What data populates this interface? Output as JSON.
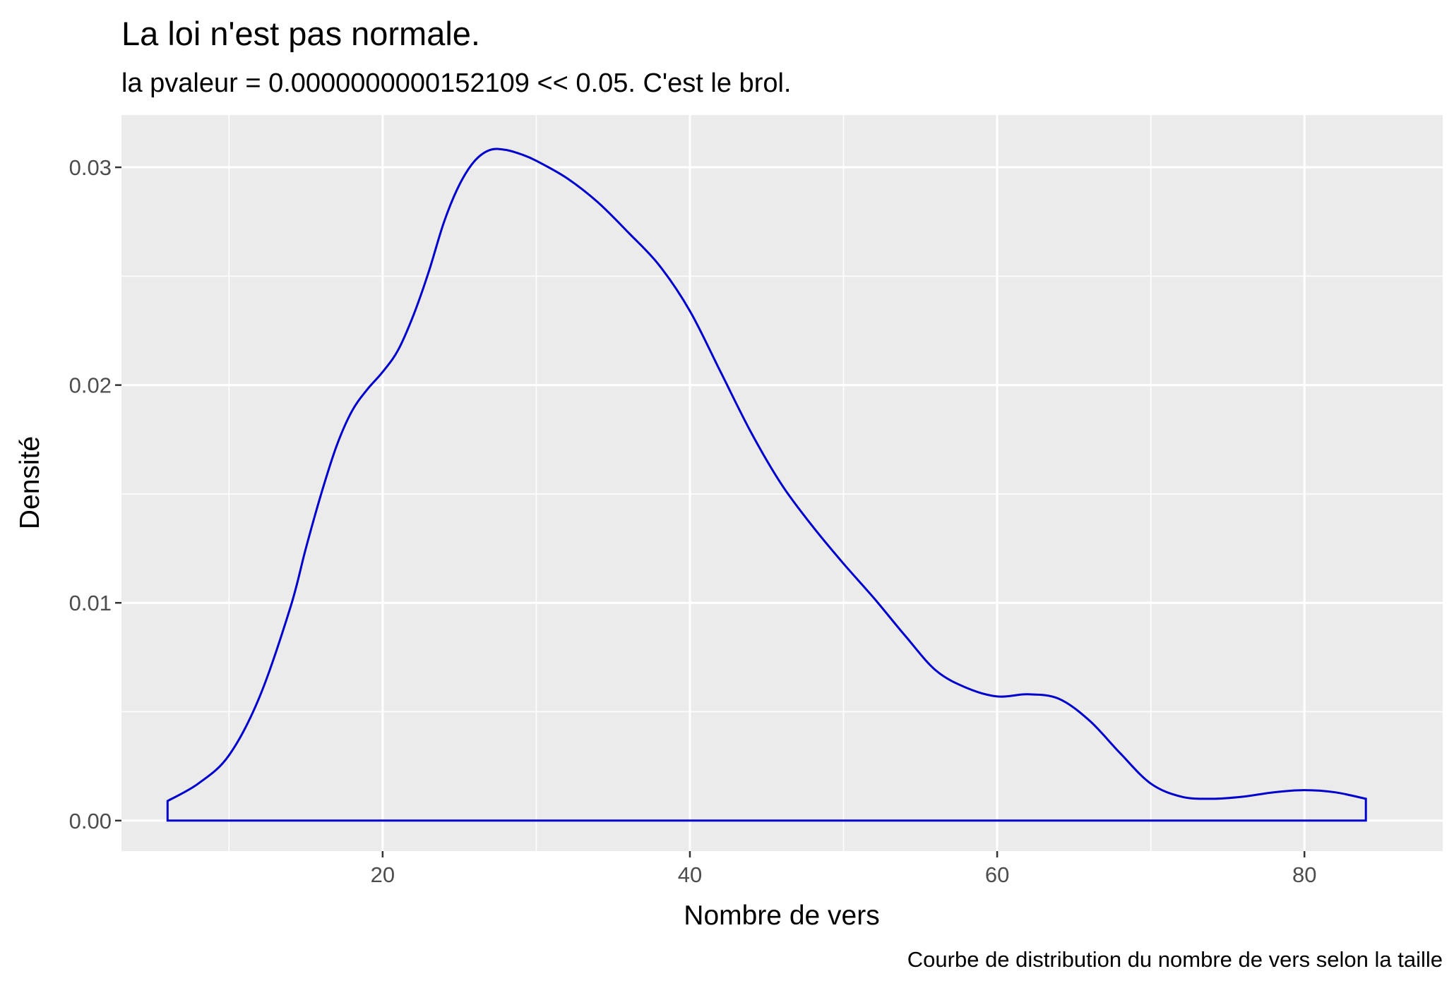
{
  "chart_data": {
    "type": "line",
    "subtype": "density",
    "title": "La loi n'est pas normale.",
    "subtitle": "la pvaleur =  0.0000000000152109  << 0.05. C'est le brol.",
    "caption": "Courbe de distribution du nombre de vers selon la taille",
    "xlabel": "Nombre de vers",
    "ylabel": "Densité",
    "xlim": [
      3,
      89
    ],
    "ylim": [
      -0.0014,
      0.0324
    ],
    "x_ticks": [
      20,
      40,
      60,
      80
    ],
    "x_tick_labels": [
      "20",
      "40",
      "60",
      "80"
    ],
    "x_minor_ticks": [
      10,
      30,
      50,
      70
    ],
    "y_ticks": [
      0,
      0.01,
      0.02,
      0.03
    ],
    "y_tick_labels": [
      "0.00",
      "0.01",
      "0.02",
      "0.03"
    ],
    "y_minor_ticks": [
      0.005,
      0.015,
      0.025
    ],
    "grid": true,
    "panel_background": "#ebebeb",
    "grid_color": "#ffffff",
    "line_color": "#0000cd",
    "fill": "none",
    "series": [
      {
        "x": [
          6,
          8,
          10,
          12,
          14,
          15,
          16,
          17,
          18,
          19,
          20,
          21,
          22,
          23,
          24,
          25,
          26,
          27,
          28,
          29,
          30,
          32,
          34,
          36,
          38,
          40,
          42,
          44,
          46,
          48,
          50,
          52,
          54,
          56,
          58,
          60,
          62,
          64,
          66,
          68,
          70,
          72,
          74,
          76,
          78,
          80,
          82,
          84
        ],
        "y": [
          0.0009,
          0.0017,
          0.003,
          0.0057,
          0.0098,
          0.0125,
          0.015,
          0.0172,
          0.0188,
          0.0198,
          0.0206,
          0.0216,
          0.0232,
          0.0252,
          0.0275,
          0.0292,
          0.0303,
          0.0308,
          0.0308,
          0.0306,
          0.0303,
          0.0295,
          0.0284,
          0.027,
          0.0255,
          0.0234,
          0.0206,
          0.0178,
          0.0154,
          0.0135,
          0.0118,
          0.0102,
          0.0085,
          0.0069,
          0.0061,
          0.0057,
          0.0058,
          0.0056,
          0.0046,
          0.0031,
          0.0017,
          0.0011,
          0.001,
          0.0011,
          0.0013,
          0.0014,
          0.0013,
          0.001
        ]
      }
    ]
  }
}
